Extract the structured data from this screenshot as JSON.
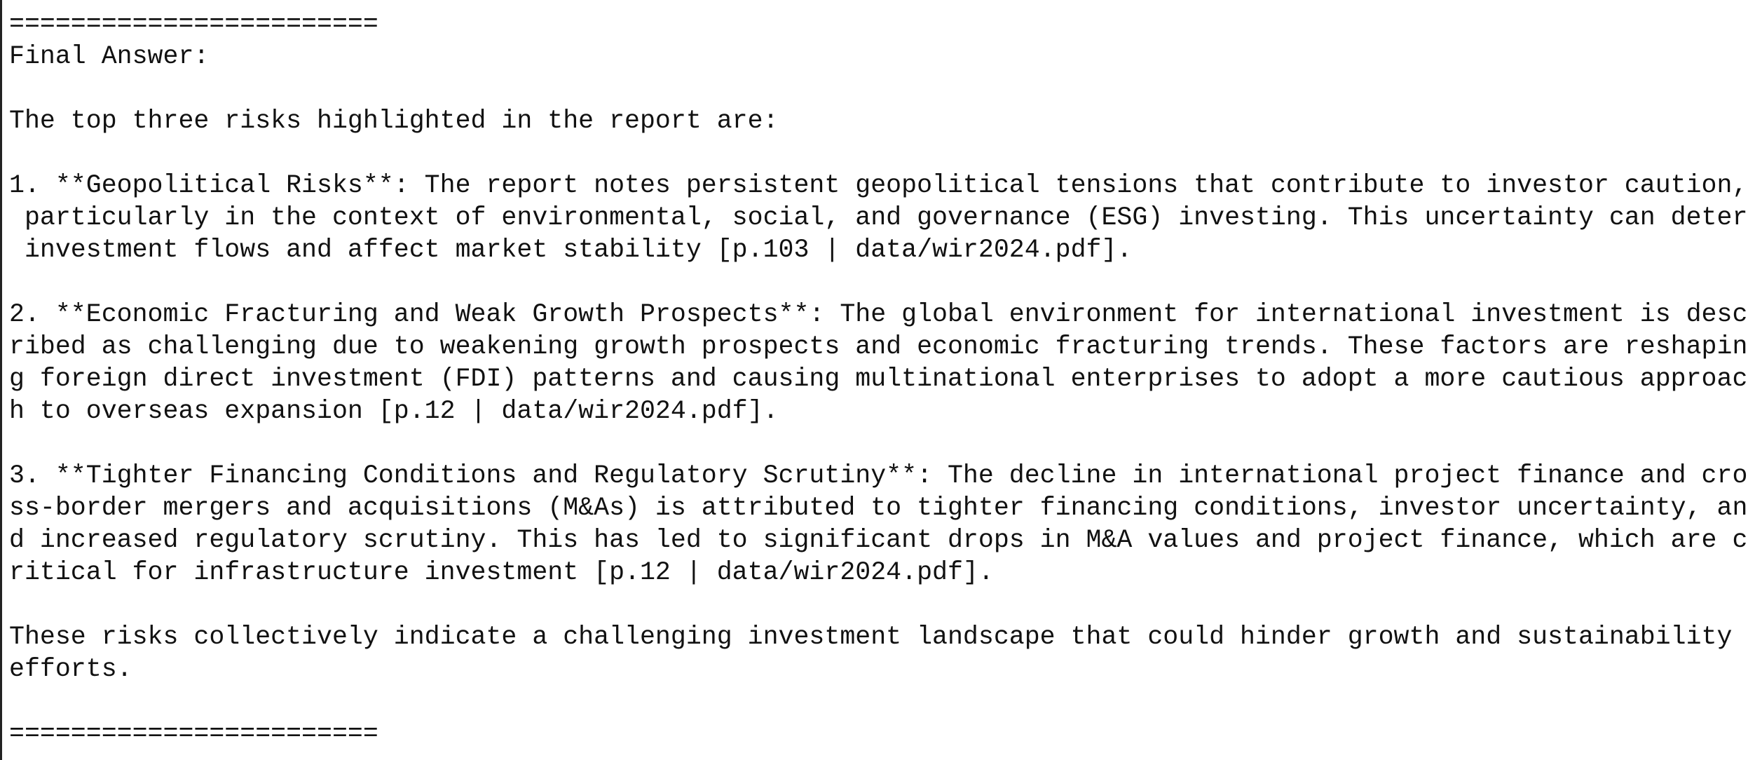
{
  "separator_top": "========================",
  "label": "Final Answer:",
  "intro": "The top three risks highlighted in the report are:",
  "items": [
    {
      "lines": [
        "1. **Geopolitical Risks**: The report notes persistent geopolitical tensions that contribute to investor caution,",
        " particularly in the context of environmental, social, and governance (ESG) investing. This uncertainty can deter",
        " investment flows and affect market stability [p.103 | data/wir2024.pdf]."
      ]
    },
    {
      "lines": [
        "2. **Economic Fracturing and Weak Growth Prospects**: The global environment for international investment is desc",
        "ribed as challenging due to weakening growth prospects and economic fracturing trends. These factors are reshapin",
        "g foreign direct investment (FDI) patterns and causing multinational enterprises to adopt a more cautious approac",
        "h to overseas expansion [p.12 | data/wir2024.pdf]."
      ]
    },
    {
      "lines": [
        "3. **Tighter Financing Conditions and Regulatory Scrutiny**: The decline in international project finance and cro",
        "ss-border mergers and acquisitions (M&As) is attributed to tighter financing conditions, investor uncertainty, an",
        "d increased regulatory scrutiny. This has led to significant drops in M&A values and project finance, which are c",
        "ritical for infrastructure investment [p.12 | data/wir2024.pdf]."
      ]
    }
  ],
  "conclusion": [
    "These risks collectively indicate a challenging investment landscape that could hinder growth and sustainability",
    "efforts."
  ],
  "separator_bottom": "========================"
}
